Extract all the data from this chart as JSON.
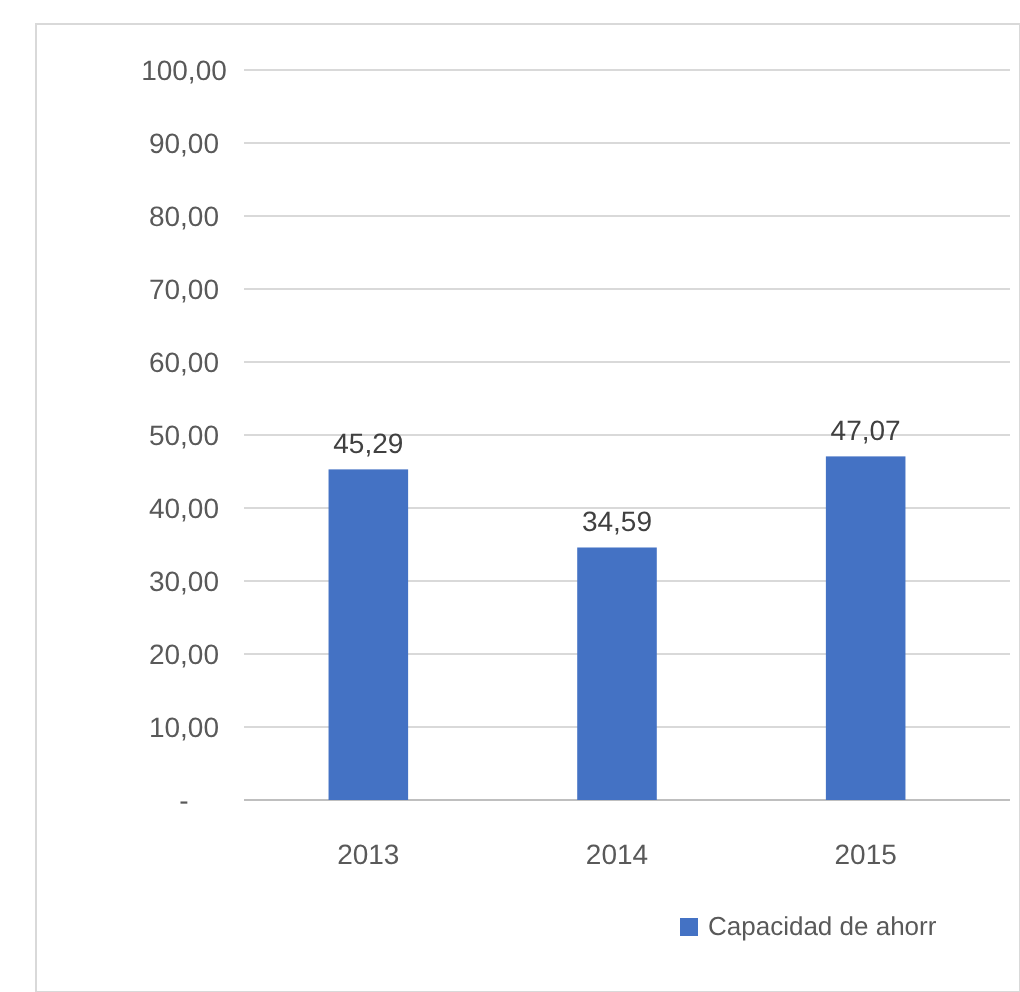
{
  "chart_data": {
    "type": "bar",
    "categories": [
      "2013",
      "2014",
      "2015"
    ],
    "series": [
      {
        "name": "Capacidad de ahorr",
        "color": "#4472c4",
        "values": [
          45.29,
          34.59,
          47.07
        ],
        "value_labels": [
          "45,29",
          "34,59",
          "47,07"
        ]
      }
    ],
    "ylim": [
      0,
      100
    ],
    "yticks": [
      {
        "value": 0,
        "label": "-"
      },
      {
        "value": 10,
        "label": "10,00"
      },
      {
        "value": 20,
        "label": "20,00"
      },
      {
        "value": 30,
        "label": "30,00"
      },
      {
        "value": 40,
        "label": "40,00"
      },
      {
        "value": 50,
        "label": "50,00"
      },
      {
        "value": 60,
        "label": "60,00"
      },
      {
        "value": 70,
        "label": "70,00"
      },
      {
        "value": 80,
        "label": "80,00"
      },
      {
        "value": 90,
        "label": "90,00"
      },
      {
        "value": 100,
        "label": "100,00"
      }
    ],
    "grid": "y",
    "legend": "bottom"
  }
}
